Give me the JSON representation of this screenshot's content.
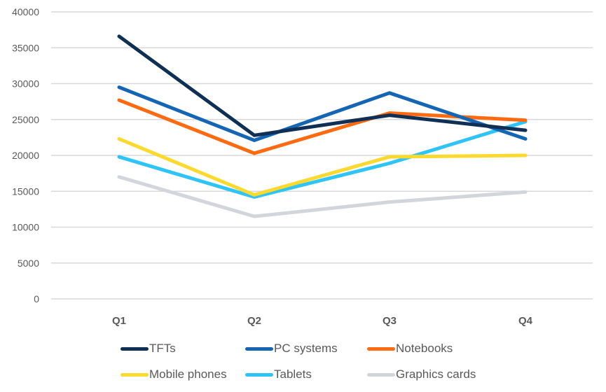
{
  "chart_data": {
    "type": "line",
    "title": "",
    "xlabel": "",
    "ylabel": "",
    "categories": [
      "Q1",
      "Q2",
      "Q3",
      "Q4"
    ],
    "ylim": [
      0,
      40000
    ],
    "yticks": [
      0,
      5000,
      10000,
      15000,
      20000,
      25000,
      30000,
      35000,
      40000
    ],
    "grid": true,
    "legend_position": "bottom",
    "series": [
      {
        "name": "TFTs",
        "color": "#0f2f55",
        "values": [
          36600,
          22800,
          25600,
          23500
        ]
      },
      {
        "name": "PC systems",
        "color": "#1565b5",
        "values": [
          29500,
          22100,
          28700,
          22300
        ]
      },
      {
        "name": "Notebooks",
        "color": "#ff6a10",
        "values": [
          27700,
          20300,
          25900,
          24900
        ]
      },
      {
        "name": "Mobile phones",
        "color": "#fbd92f",
        "values": [
          22300,
          14500,
          19800,
          20000
        ]
      },
      {
        "name": "Tablets",
        "color": "#2ec4f7",
        "values": [
          19800,
          14200,
          18900,
          24700
        ]
      },
      {
        "name": "Graphics cards",
        "color": "#d2d5db",
        "values": [
          17000,
          11500,
          13500,
          14900
        ]
      }
    ]
  }
}
